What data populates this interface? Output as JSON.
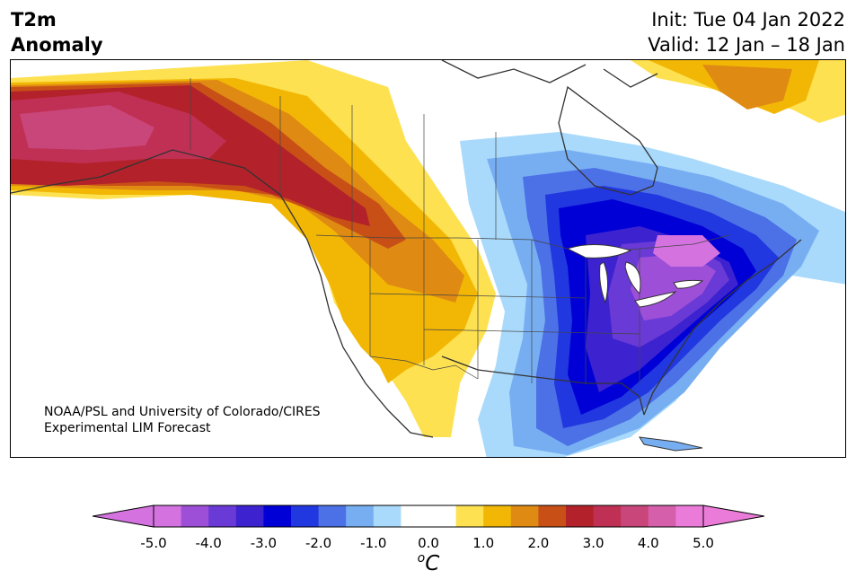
{
  "title": {
    "variable": "T2m",
    "subtitle": "Anomaly",
    "init": "Init: Tue 04 Jan 2022",
    "valid": "Valid: 12 Jan – 18 Jan"
  },
  "credit": {
    "line1": "NOAA/PSL and University of Colorado/CIRES",
    "line2": "Experimental LIM Forecast"
  },
  "colorbar": {
    "colors": [
      "#d473e0",
      "#9e4fd8",
      "#6a3ad6",
      "#3d22d0",
      "#0000d6",
      "#2137df",
      "#4c70e6",
      "#77aef2",
      "#a9dafb",
      "#ffffff",
      "#ffffff",
      "#fde151",
      "#f2b705",
      "#df8a12",
      "#c85017",
      "#b3222a",
      "#c03055",
      "#c9467a",
      "#d65fab",
      "#ea7bd8"
    ],
    "tick_labels": [
      "-5.0",
      "-4.0",
      "-3.0",
      "-2.0",
      "-1.0",
      "0.0",
      "1.0",
      "2.0",
      "3.0",
      "4.0",
      "5.0"
    ],
    "unit": "C",
    "unit_prefix": "o"
  }
}
